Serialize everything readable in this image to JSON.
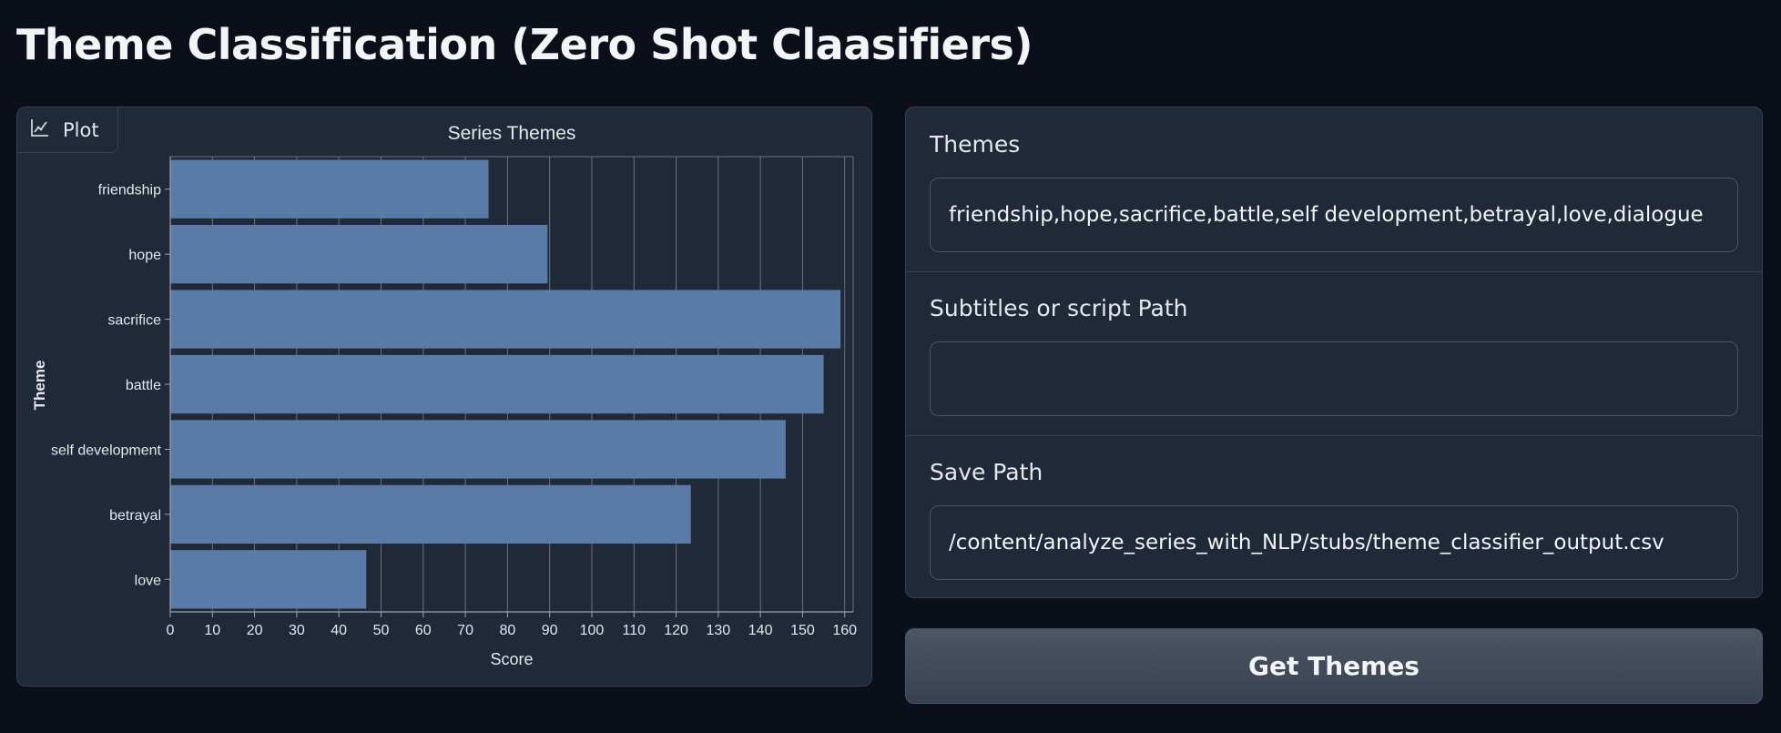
{
  "page": {
    "title": "Theme Classification (Zero Shot Claasifiers)"
  },
  "plot": {
    "tab_label": "Plot",
    "tab_icon": "chart-icon"
  },
  "chart_data": {
    "type": "bar",
    "orientation": "horizontal",
    "title": "Series Themes",
    "xlabel": "Score",
    "ylabel": "Theme",
    "categories": [
      "friendship",
      "hope",
      "sacrifice",
      "battle",
      "self development",
      "betrayal",
      "love"
    ],
    "values": [
      75.5,
      89.5,
      159,
      155,
      146,
      123.5,
      46.5
    ],
    "xlim": [
      0,
      162
    ],
    "xticks": [
      0,
      10,
      20,
      30,
      40,
      50,
      60,
      70,
      80,
      90,
      100,
      110,
      120,
      130,
      140,
      150,
      160
    ],
    "grid": true,
    "bar_color": "#5a7aa8",
    "background_color": "#1f2937"
  },
  "form": {
    "themes": {
      "label": "Themes",
      "value": "friendship,hope,sacrifice,battle,self development,betrayal,love,dialogue"
    },
    "subtitles": {
      "label": "Subtitles or script Path",
      "value": ""
    },
    "save_path": {
      "label": "Save Path",
      "value": "/content/analyze_series_with_NLP/stubs/theme_classifier_output.csv"
    }
  },
  "button": {
    "label": "Get Themes"
  }
}
